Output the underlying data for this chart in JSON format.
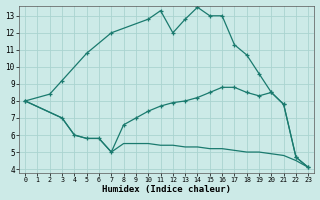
{
  "xlabel": "Humidex (Indice chaleur)",
  "bg_color": "#cceae7",
  "grid_color": "#aad4d0",
  "line_color": "#1a7a6e",
  "xlim": [
    -0.5,
    23.5
  ],
  "ylim": [
    3.8,
    13.6
  ],
  "yticks": [
    4,
    5,
    6,
    7,
    8,
    9,
    10,
    11,
    12,
    13
  ],
  "xticks": [
    0,
    1,
    2,
    3,
    4,
    5,
    6,
    7,
    8,
    9,
    10,
    11,
    12,
    13,
    14,
    15,
    16,
    17,
    18,
    19,
    20,
    21,
    22,
    23
  ],
  "line1_upper": {
    "x": [
      0,
      2,
      3,
      5,
      7,
      10,
      11,
      12,
      13,
      14,
      15,
      16,
      17,
      18,
      19,
      20,
      21,
      22,
      23
    ],
    "y": [
      8.0,
      8.4,
      9.2,
      10.8,
      12.0,
      12.8,
      13.3,
      12.0,
      12.8,
      13.5,
      13.0,
      13.0,
      11.3,
      10.7,
      9.6,
      8.5,
      7.8,
      4.7,
      4.1
    ]
  },
  "line2_middle": {
    "x": [
      0,
      3,
      4,
      5,
      6,
      7,
      8,
      9,
      10,
      11,
      12,
      13,
      14,
      15,
      16,
      17,
      18,
      19,
      20,
      21,
      22,
      23
    ],
    "y": [
      8.0,
      7.0,
      6.0,
      5.8,
      5.8,
      5.0,
      6.6,
      7.0,
      7.4,
      7.7,
      7.9,
      8.0,
      8.2,
      8.5,
      8.8,
      8.8,
      8.5,
      8.3,
      8.5,
      7.8,
      4.7,
      4.1
    ]
  },
  "line3_lower": {
    "x": [
      0,
      3,
      4,
      5,
      6,
      7,
      8,
      9,
      10,
      11,
      12,
      13,
      14,
      15,
      16,
      17,
      18,
      19,
      20,
      21,
      22,
      23
    ],
    "y": [
      8.0,
      7.0,
      6.0,
      5.8,
      5.8,
      5.0,
      5.5,
      5.5,
      5.5,
      5.4,
      5.4,
      5.3,
      5.3,
      5.2,
      5.2,
      5.1,
      5.0,
      5.0,
      4.9,
      4.8,
      4.5,
      4.1
    ]
  }
}
